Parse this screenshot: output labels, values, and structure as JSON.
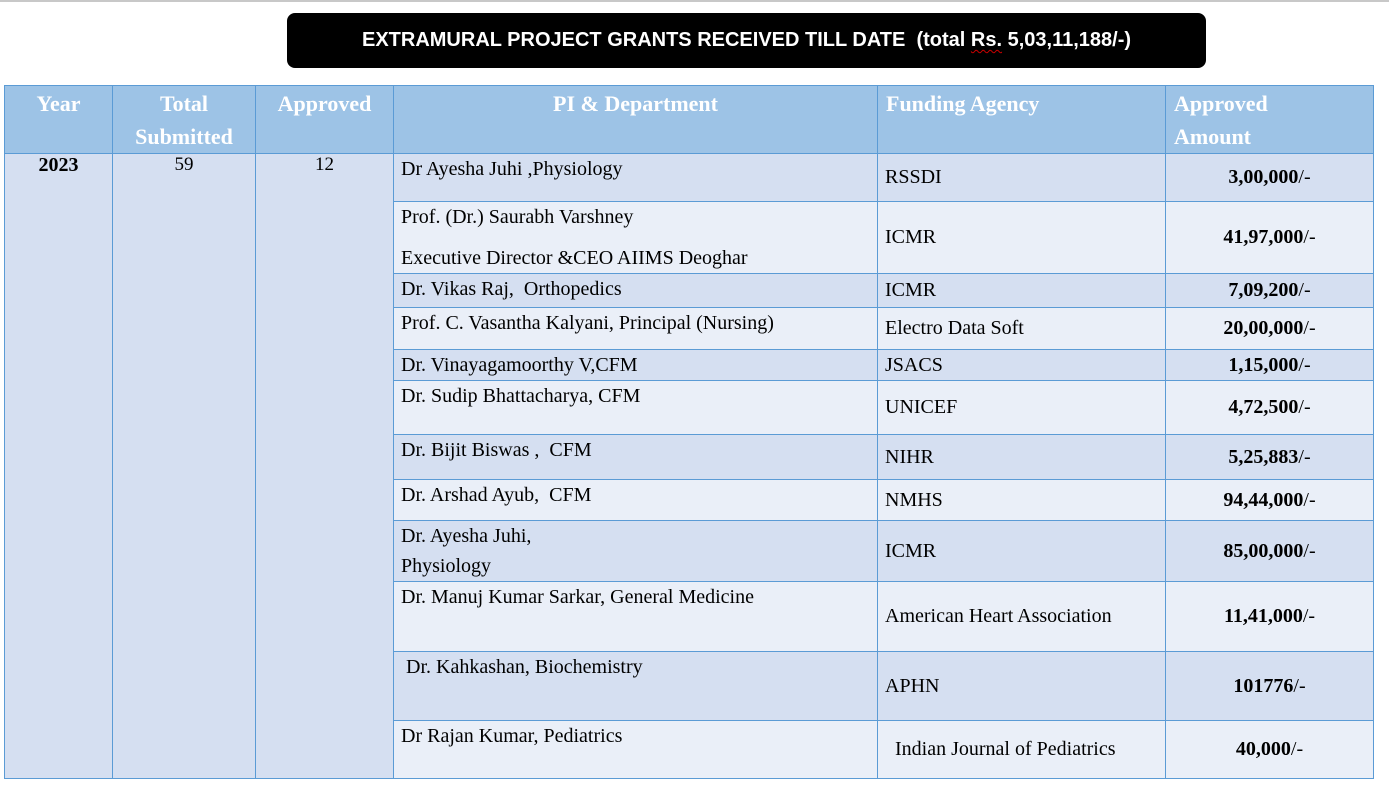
{
  "banner": {
    "prefix": "EXTRAMURAL PROJECT GRANTS RECEIVED TILL DATE  (total ",
    "rs": "Rs.",
    "suffix": " 5,03,11,188/-)"
  },
  "table": {
    "headers": {
      "year": "Year",
      "total_line1": "Total",
      "total_line2": "Submitted",
      "approved": "Approved",
      "pi": "PI & Department",
      "agency": "Funding Agency",
      "amount_line1": "Approved",
      "amount_line2": "Amount"
    },
    "year": "2023",
    "total_submitted": "59",
    "approved_count": "12",
    "rows": [
      {
        "pi": [
          "Dr Ayesha Juhi ,Physiology"
        ],
        "agency": "RSSDI",
        "amount": "3,00,000",
        "suffix": "/-"
      },
      {
        "pi": [
          "Prof. (Dr.) Saurabh Varshney",
          "Executive Director &CEO AIIMS Deoghar"
        ],
        "agency": "ICMR",
        "amount": "41,97,000",
        "suffix": "/-"
      },
      {
        "pi": [
          "Dr. Vikas Raj,  Orthopedics"
        ],
        "agency": "ICMR",
        "amount": "7,09,200",
        "suffix": "/-"
      },
      {
        "pi": [
          "Prof. C. Vasantha Kalyani, Principal (Nursing)"
        ],
        "agency": "Electro Data Soft",
        "amount": "20,00,000",
        "suffix": "/-"
      },
      {
        "pi": [
          "Dr. Vinayagamoorthy V,CFM"
        ],
        "agency": "JSACS",
        "amount": "1,15,000",
        "suffix": "/-"
      },
      {
        "pi": [
          "Dr. Sudip Bhattacharya, CFM"
        ],
        "agency": "UNICEF",
        "amount": "4,72,500",
        "suffix": "/-"
      },
      {
        "pi": [
          "Dr. Bijit Biswas ,  CFM"
        ],
        "agency": "NIHR",
        "amount": "5,25,883",
        "suffix": "/-"
      },
      {
        "pi": [
          "Dr. Arshad Ayub,  CFM"
        ],
        "agency": "NMHS",
        "amount": "94,44,000",
        "suffix": "/-"
      },
      {
        "pi": [
          "Dr. Ayesha Juhi,",
          "Physiology"
        ],
        "agency": "ICMR",
        "amount": "85,00,000",
        "suffix": "/-"
      },
      {
        "pi": [
          "Dr. Manuj Kumar Sarkar, General Medicine"
        ],
        "agency": "American Heart Association",
        "amount": "11,41,000",
        "suffix": "/-"
      },
      {
        "pi": [
          " Dr. Kahkashan, Biochemistry"
        ],
        "agency": "APHN",
        "amount": "101776",
        "suffix": "/-"
      },
      {
        "pi": [
          "Dr Rajan Kumar, Pediatrics"
        ],
        "agency": "  Indian Journal of Pediatrics",
        "amount": "40,000",
        "suffix": "/-"
      }
    ]
  },
  "colors": {
    "header_bg": "#9dc3e6",
    "border": "#5b9bd5",
    "band_dark": "#d5dff1",
    "band_light": "#eaeff8",
    "banner_bg": "#000000"
  }
}
